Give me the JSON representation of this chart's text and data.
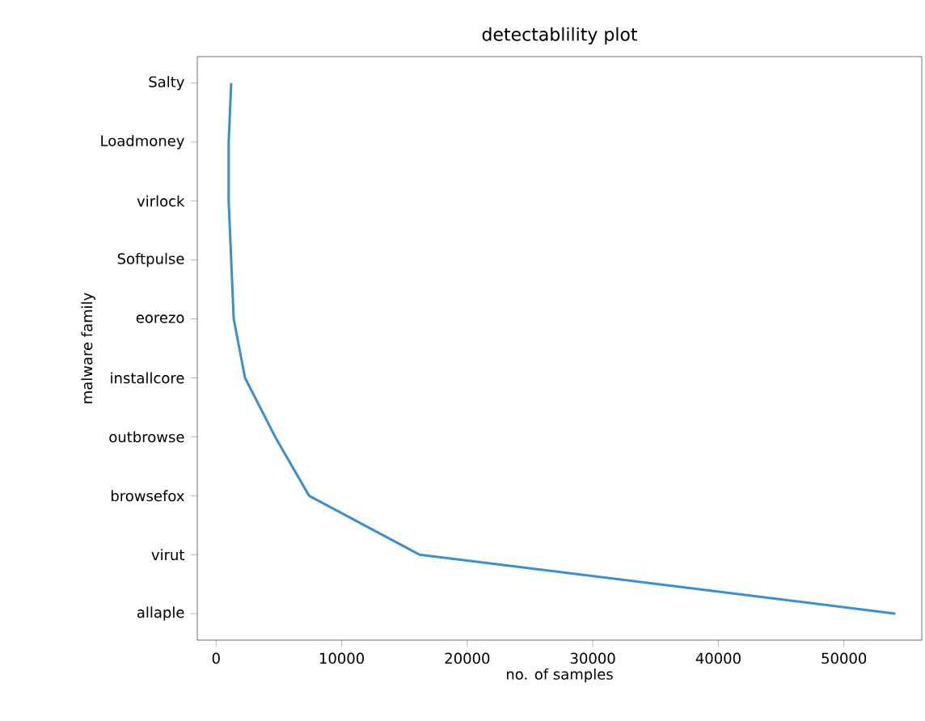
{
  "chart_data": {
    "type": "line",
    "orientation": "horizontal",
    "title": "detectablility plot",
    "xlabel": "no. of samples",
    "ylabel": "malware family",
    "categories": [
      "Salty",
      "Loadmoney",
      "virlock",
      "Softpulse",
      "eorezo",
      "installcore",
      "outbrowse",
      "browsefox",
      "virut",
      "allaple"
    ],
    "values": [
      1200,
      1000,
      1000,
      1200,
      1400,
      2300,
      4700,
      7400,
      16200,
      54100
    ],
    "color": "#3a8fd0",
    "xlim": [
      -1500,
      56200
    ],
    "xticks": [
      0,
      10000,
      20000,
      30000,
      40000,
      50000
    ],
    "grid": false,
    "marker": "none",
    "line_style": "solid"
  }
}
